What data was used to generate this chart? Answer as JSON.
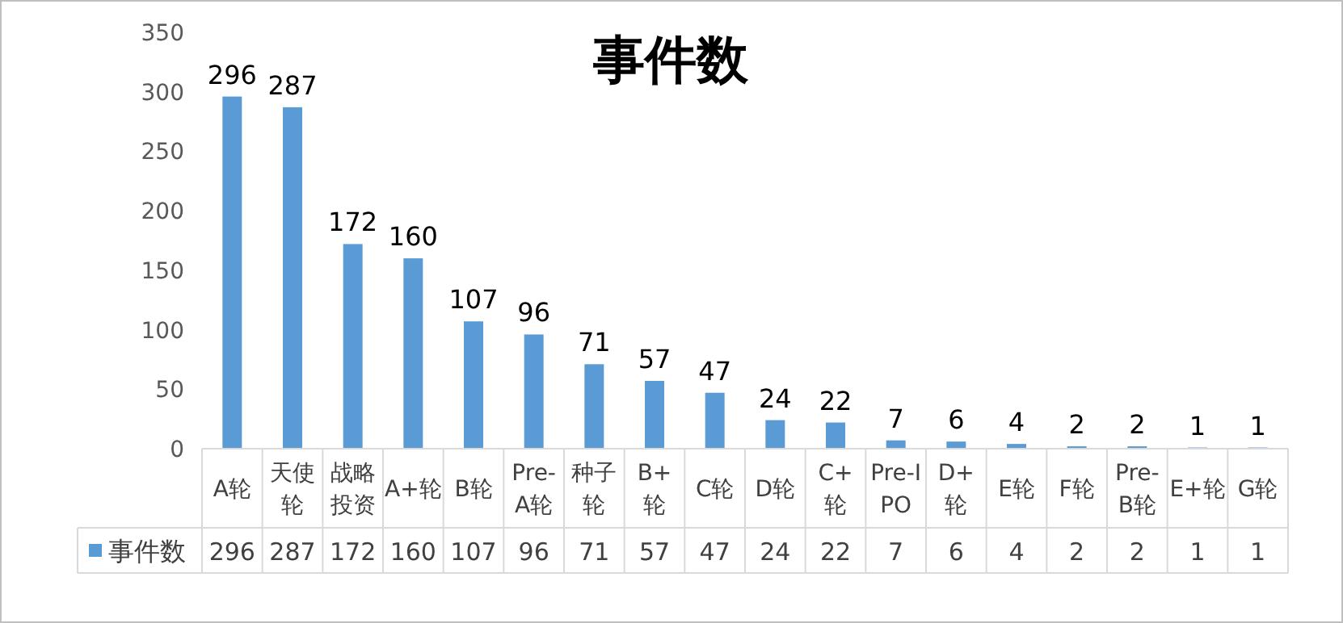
{
  "chart_data": {
    "type": "bar",
    "title": "事件数",
    "categories": [
      "A轮",
      "天使轮",
      "战略投资",
      "A+轮",
      "B轮",
      "Pre-A轮",
      "种子轮",
      "B+轮",
      "C轮",
      "D轮",
      "C+轮",
      "Pre-IPO",
      "D+轮",
      "E轮",
      "F轮",
      "Pre-B轮",
      "E+轮",
      "G轮"
    ],
    "series": [
      {
        "name": "事件数",
        "color": "#5b9bd5",
        "values": [
          296,
          287,
          172,
          160,
          107,
          96,
          71,
          57,
          47,
          24,
          22,
          7,
          6,
          4,
          2,
          2,
          1,
          1
        ],
        "value_labels": [
          "296",
          "287",
          "172",
          "160",
          "107",
          "96",
          "71",
          "57",
          "47",
          "24",
          "22",
          "7",
          "6",
          "4",
          "2",
          "2",
          "1",
          "1"
        ]
      }
    ],
    "ylim": [
      0,
      350
    ],
    "yticks": [
      0,
      50,
      100,
      150,
      200,
      250,
      300,
      350
    ],
    "annotations": [
      "296",
      "287",
      "172",
      "160",
      "107",
      "96",
      "71",
      "57",
      "47",
      "24",
      "22",
      "7",
      "6",
      "4",
      "2",
      "2",
      "1",
      "1"
    ],
    "legend": "bottom"
  }
}
